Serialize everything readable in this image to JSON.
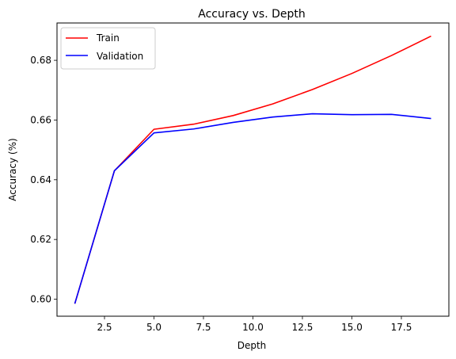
{
  "chart_data": {
    "type": "line",
    "title": "Accuracy vs. Depth",
    "xlabel": "Depth",
    "ylabel": "Accuracy (%)",
    "xlim": [
      0.1,
      19.9
    ],
    "ylim": [
      0.5943,
      0.6925
    ],
    "xticks": [
      2.5,
      5.0,
      7.5,
      10.0,
      12.5,
      15.0,
      17.5
    ],
    "xtick_labels": [
      "2.5",
      "5.0",
      "7.5",
      "10.0",
      "12.5",
      "15.0",
      "17.5"
    ],
    "yticks": [
      0.6,
      0.62,
      0.64,
      0.66,
      0.68
    ],
    "ytick_labels": [
      "0.60",
      "0.62",
      "0.64",
      "0.66",
      "0.68"
    ],
    "grid": false,
    "legend_position": "upper-left",
    "x": [
      1,
      3,
      5,
      7,
      9,
      11,
      13,
      15,
      17,
      19
    ],
    "series": [
      {
        "name": "Train",
        "color": "#ff0000",
        "values": [
          0.5985,
          0.643,
          0.6569,
          0.6586,
          0.6615,
          0.6654,
          0.6702,
          0.6756,
          0.6816,
          0.6881
        ]
      },
      {
        "name": "Validation",
        "color": "#0000ff",
        "values": [
          0.5985,
          0.643,
          0.6557,
          0.657,
          0.6592,
          0.661,
          0.6621,
          0.6618,
          0.6619,
          0.6605
        ]
      }
    ]
  }
}
